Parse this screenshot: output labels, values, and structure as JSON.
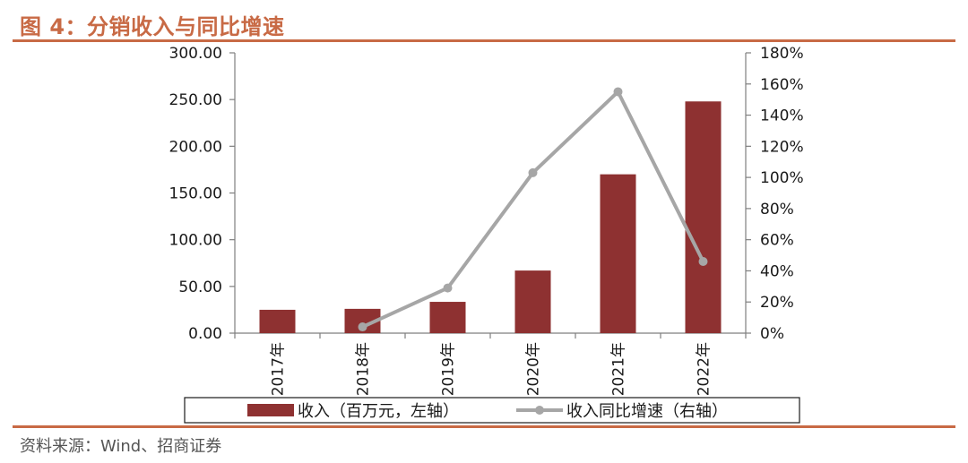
{
  "title": "图 4：分销收入与同比增速",
  "source": "资料来源：Wind、招商证券",
  "colors": {
    "accent": "#c86a45",
    "bar": "#8e3131",
    "line": "#a6a6a6",
    "axis": "#7f7f7f"
  },
  "chart_data": {
    "type": "bar",
    "categories": [
      "2017年",
      "2018年",
      "2019年",
      "2020年",
      "2021年",
      "2022年"
    ],
    "series": [
      {
        "name": "收入（百万元，左轴）",
        "type": "bar",
        "axis": "left",
        "values": [
          25.0,
          26.0,
          33.5,
          67.0,
          170.0,
          248.0
        ]
      },
      {
        "name": "收入同比增速（右轴）",
        "type": "line",
        "axis": "right",
        "values": [
          null,
          0.04,
          0.29,
          1.03,
          1.55,
          0.46
        ]
      }
    ],
    "left_axis": {
      "min": 0,
      "max": 300,
      "ticks": [
        "0.00",
        "50.00",
        "100.00",
        "150.00",
        "200.00",
        "250.00",
        "300.00"
      ]
    },
    "right_axis": {
      "min": 0,
      "max": 1.8,
      "ticks": [
        "0%",
        "20%",
        "40%",
        "60%",
        "80%",
        "100%",
        "120%",
        "140%",
        "160%",
        "180%"
      ]
    },
    "grid": false,
    "legend_position": "bottom"
  }
}
